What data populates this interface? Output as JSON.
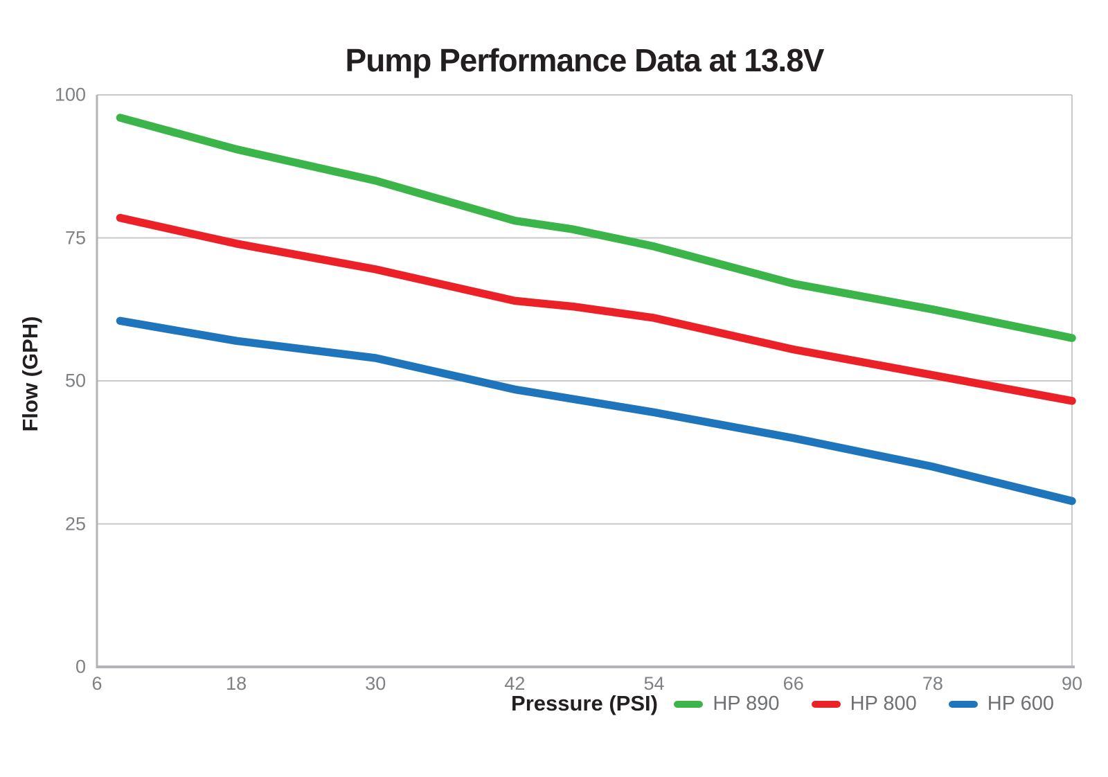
{
  "chart_data": {
    "type": "line",
    "title": "Pump Performance Data at 13.8V",
    "xlabel": "Pressure (PSI)",
    "ylabel": "Flow (GPH)",
    "xlim": [
      6,
      90
    ],
    "ylim": [
      0,
      100
    ],
    "x_ticks": [
      6,
      18,
      30,
      42,
      54,
      66,
      78,
      90
    ],
    "y_ticks": [
      0,
      25,
      50,
      75,
      100
    ],
    "grid": "horizontal-only",
    "legend_position": "bottom-right",
    "series": [
      {
        "name": "HP 890",
        "color": "#3bb54a",
        "points": [
          [
            8,
            96
          ],
          [
            18,
            90.5
          ],
          [
            30,
            85
          ],
          [
            42,
            78
          ],
          [
            47,
            76.5
          ],
          [
            54,
            73.5
          ],
          [
            66,
            67
          ],
          [
            78,
            62.5
          ],
          [
            90,
            57.5
          ]
        ]
      },
      {
        "name": "HP 800",
        "color": "#ec2127",
        "points": [
          [
            8,
            78.5
          ],
          [
            18,
            74
          ],
          [
            30,
            69.5
          ],
          [
            42,
            64
          ],
          [
            47,
            63
          ],
          [
            54,
            61
          ],
          [
            66,
            55.5
          ],
          [
            78,
            51
          ],
          [
            90,
            46.5
          ]
        ]
      },
      {
        "name": "HP 600",
        "color": "#1e75bb",
        "points": [
          [
            8,
            60.5
          ],
          [
            18,
            57
          ],
          [
            30,
            54
          ],
          [
            42,
            48.5
          ],
          [
            54,
            44.5
          ],
          [
            66,
            40
          ],
          [
            78,
            35
          ],
          [
            90,
            29
          ]
        ]
      }
    ],
    "style": {
      "grid_color": "#c8c9cb",
      "axis_color": "#b1b3b6",
      "tick_label_color": "#7e8083",
      "title_color": "#231f20",
      "legend_text_color": "#6e7073",
      "line_width": 11.5
    }
  }
}
